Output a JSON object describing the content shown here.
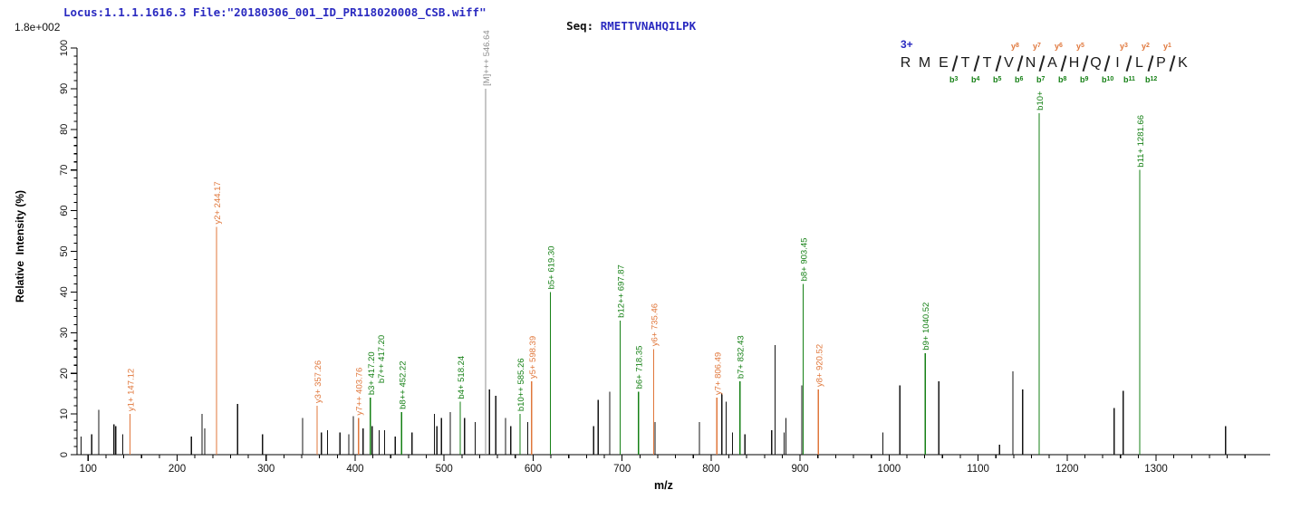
{
  "header": {
    "locus_file": "Locus:1.1.1.1616.3 File:\"20180306_001_ID_PR118020008_CSB.wiff\"",
    "seq_label": "Seq: ",
    "seq_value": "RMETTVNAHQILPK",
    "max_intensity_label": "1.8e+002"
  },
  "colors": {
    "y_ion": "#E0773B",
    "b_ion": "#158015",
    "precursor": "#8F8F8F",
    "peak_default": "#141414",
    "header_blue": "#2A2AC0",
    "axis": "#000000"
  },
  "sequence_display": {
    "charge": "3+",
    "residues": [
      "R",
      "M",
      "E",
      "T",
      "T",
      "V",
      "N",
      "A",
      "H",
      "Q",
      "I",
      "L",
      "P",
      "K"
    ],
    "gaps": [
      {
        "b": null,
        "y": null
      },
      {
        "b": null,
        "y": null
      },
      {
        "b": "b3",
        "y": null
      },
      {
        "b": "b4",
        "y": null
      },
      {
        "b": "b5",
        "y": null
      },
      {
        "b": "b6",
        "y": "y8"
      },
      {
        "b": "b7",
        "y": "y7"
      },
      {
        "b": "b8",
        "y": "y6"
      },
      {
        "b": "b9",
        "y": "y5"
      },
      {
        "b": "b10",
        "y": null
      },
      {
        "b": "b11",
        "y": "y3"
      },
      {
        "b": "b12",
        "y": "y2"
      },
      {
        "b": null,
        "y": "y1"
      }
    ]
  },
  "chart_data": {
    "type": "bar",
    "subtype": "ms2-stick-spectrum",
    "xlabel": "m/z",
    "ylabel": "Relative  Intensity (%)",
    "xlim": [
      87,
      1428
    ],
    "ylim": [
      0,
      100
    ],
    "grid": false,
    "x_ticks": {
      "major_start": 100,
      "major_end": 1300,
      "major_step": 100,
      "minor_step": 20,
      "minor_end": 1400
    },
    "y_ticks": {
      "max": 100,
      "major_step": 10,
      "minor_step": 2
    },
    "annotated_peaks": [
      {
        "label": "y1+ 147.12",
        "ion": "y",
        "mz": 147.12,
        "intensity": 10
      },
      {
        "label": "y2+ 244.17",
        "ion": "y",
        "mz": 244.17,
        "intensity": 56
      },
      {
        "label": "y3+ 357.26",
        "ion": "y",
        "mz": 357.26,
        "intensity": 12
      },
      {
        "label": "y7++ 403.76",
        "ion": "y",
        "mz": 403.76,
        "intensity": 9
      },
      {
        "label": "b3+ 417.20",
        "label2": "b7++ 417.20",
        "ion": "b",
        "mz": 417.2,
        "intensity": 14
      },
      {
        "label": "b8++ 452.22",
        "ion": "b",
        "mz": 452.22,
        "intensity": 10.5
      },
      {
        "label": "b4+ 518.24",
        "ion": "b",
        "mz": 518.24,
        "intensity": 13
      },
      {
        "label": "[M]+++ 546.64",
        "ion": "precursor",
        "mz": 546.64,
        "intensity": 90
      },
      {
        "label": "b10++ 585.26",
        "ion": "b",
        "mz": 585.26,
        "intensity": 10
      },
      {
        "label": "y5+ 598.39",
        "ion": "y",
        "mz": 598.39,
        "intensity": 18
      },
      {
        "label": "b5+ 619.30",
        "ion": "b",
        "mz": 619.3,
        "intensity": 40
      },
      {
        "label": "b12++ 697.87",
        "ion": "b",
        "mz": 697.87,
        "intensity": 33
      },
      {
        "label": "b6+ 718.35",
        "ion": "b",
        "mz": 718.35,
        "intensity": 15.5
      },
      {
        "label": "y6+ 735.46",
        "ion": "y",
        "mz": 735.46,
        "intensity": 26
      },
      {
        "label": "y7+ 806.49",
        "ion": "y",
        "mz": 806.49,
        "intensity": 14
      },
      {
        "label": "b7+ 832.43",
        "ion": "b",
        "mz": 832.43,
        "intensity": 18
      },
      {
        "label": "b8+ 903.45",
        "ion": "b",
        "mz": 903.45,
        "intensity": 42
      },
      {
        "label": "y8+ 920.52",
        "ion": "y",
        "mz": 920.52,
        "intensity": 16
      },
      {
        "label": "b9+ 1040.52",
        "ion": "b",
        "mz": 1040.52,
        "intensity": 25
      },
      {
        "label": "b10+",
        "ion": "b",
        "mz": 1168.58,
        "intensity": 84
      },
      {
        "label": "b11+ 1281.66",
        "ion": "b",
        "mz": 1281.66,
        "intensity": 70
      }
    ],
    "unannotated_peaks": [
      [
        92,
        4.5
      ],
      [
        104,
        5
      ],
      [
        112,
        11
      ],
      [
        129,
        7.5
      ],
      [
        131,
        7
      ],
      [
        139,
        5
      ],
      [
        216,
        4.5
      ],
      [
        228,
        10
      ],
      [
        231,
        6.5
      ],
      [
        268,
        12.5
      ],
      [
        296,
        5
      ],
      [
        341,
        9
      ],
      [
        362,
        5.5
      ],
      [
        369,
        6
      ],
      [
        383,
        5.5
      ],
      [
        393,
        5
      ],
      [
        398,
        9.5
      ],
      [
        409,
        6.5
      ],
      [
        419,
        7
      ],
      [
        427,
        6
      ],
      [
        433,
        6
      ],
      [
        445,
        4.5
      ],
      [
        452,
        6
      ],
      [
        464,
        5.5
      ],
      [
        489,
        10
      ],
      [
        492,
        7
      ],
      [
        497,
        9
      ],
      [
        507,
        10.5
      ],
      [
        523,
        9
      ],
      [
        535,
        8
      ],
      [
        551,
        16
      ],
      [
        558,
        14.5
      ],
      [
        569,
        9
      ],
      [
        575,
        7
      ],
      [
        594,
        8
      ],
      [
        668,
        7
      ],
      [
        673,
        13.5
      ],
      [
        686,
        15.5
      ],
      [
        737,
        8
      ],
      [
        787,
        8
      ],
      [
        812,
        15
      ],
      [
        817,
        13
      ],
      [
        824,
        5.5
      ],
      [
        838,
        5
      ],
      [
        868,
        6
      ],
      [
        872,
        27
      ],
      [
        882,
        5.5
      ],
      [
        884,
        9
      ],
      [
        902,
        17
      ],
      [
        993,
        5.5
      ],
      [
        1012,
        17
      ],
      [
        1041,
        12
      ],
      [
        1056,
        18
      ],
      [
        1124,
        2.5
      ],
      [
        1139,
        20.5
      ],
      [
        1150,
        16
      ],
      [
        1253,
        11.5
      ],
      [
        1263,
        15.7
      ],
      [
        1378,
        7
      ]
    ]
  }
}
